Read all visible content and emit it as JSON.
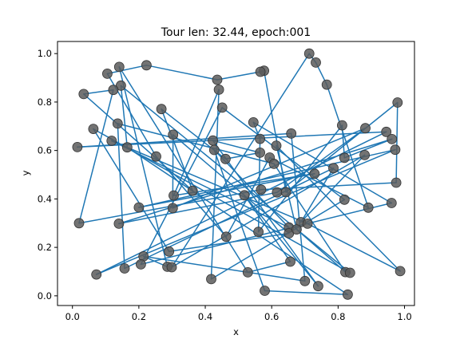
{
  "chart_data": {
    "type": "line",
    "title": "Tour len: 32.44, epoch:001",
    "xlabel": "x",
    "ylabel": "y",
    "xlim": [
      -0.045,
      1.03
    ],
    "ylim": [
      -0.04,
      1.05
    ],
    "xticks": [
      0.0,
      0.2,
      0.4,
      0.6,
      0.8,
      1.0
    ],
    "xtick_labels": [
      "0.0",
      "0.2",
      "0.4",
      "0.6",
      "0.8",
      "1.0"
    ],
    "yticks": [
      0.0,
      0.2,
      0.4,
      0.6,
      0.8,
      1.0
    ],
    "ytick_labels": [
      "0.0",
      "0.2",
      "0.4",
      "0.6",
      "0.8",
      "1.0"
    ],
    "grid": false,
    "line_color": "#1f77b4",
    "point_color": "#5a5a5a",
    "points": [
      [
        0.713,
        1.0
      ],
      [
        0.733,
        0.963
      ],
      [
        0.577,
        0.929
      ],
      [
        0.566,
        0.925
      ],
      [
        0.223,
        0.952
      ],
      [
        0.141,
        0.945
      ],
      [
        0.105,
        0.917
      ],
      [
        0.146,
        0.868
      ],
      [
        0.123,
        0.85
      ],
      [
        0.436,
        0.892
      ],
      [
        0.441,
        0.851
      ],
      [
        0.451,
        0.777
      ],
      [
        0.034,
        0.833
      ],
      [
        0.979,
        0.798
      ],
      [
        0.766,
        0.872
      ],
      [
        0.268,
        0.771
      ],
      [
        0.063,
        0.689
      ],
      [
        0.136,
        0.711
      ],
      [
        0.303,
        0.665
      ],
      [
        0.545,
        0.716
      ],
      [
        0.659,
        0.67
      ],
      [
        0.812,
        0.704
      ],
      [
        0.882,
        0.692
      ],
      [
        0.945,
        0.677
      ],
      [
        0.962,
        0.647
      ],
      [
        0.972,
        0.603
      ],
      [
        0.565,
        0.648
      ],
      [
        0.423,
        0.641
      ],
      [
        0.427,
        0.602
      ],
      [
        0.461,
        0.565
      ],
      [
        0.165,
        0.613
      ],
      [
        0.015,
        0.614
      ],
      [
        0.118,
        0.64
      ],
      [
        0.252,
        0.575
      ],
      [
        0.565,
        0.591
      ],
      [
        0.614,
        0.62
      ],
      [
        0.594,
        0.571
      ],
      [
        0.607,
        0.545
      ],
      [
        0.819,
        0.57
      ],
      [
        0.88,
        0.581
      ],
      [
        0.786,
        0.527
      ],
      [
        0.729,
        0.504
      ],
      [
        0.305,
        0.414
      ],
      [
        0.362,
        0.434
      ],
      [
        0.518,
        0.415
      ],
      [
        0.568,
        0.438
      ],
      [
        0.616,
        0.427
      ],
      [
        0.643,
        0.428
      ],
      [
        0.819,
        0.397
      ],
      [
        0.975,
        0.467
      ],
      [
        0.961,
        0.383
      ],
      [
        0.891,
        0.364
      ],
      [
        0.02,
        0.3
      ],
      [
        0.14,
        0.298
      ],
      [
        0.2,
        0.365
      ],
      [
        0.302,
        0.362
      ],
      [
        0.688,
        0.304
      ],
      [
        0.708,
        0.298
      ],
      [
        0.652,
        0.282
      ],
      [
        0.652,
        0.258
      ],
      [
        0.675,
        0.274
      ],
      [
        0.56,
        0.264
      ],
      [
        0.463,
        0.244
      ],
      [
        0.291,
        0.183
      ],
      [
        0.214,
        0.163
      ],
      [
        0.206,
        0.13
      ],
      [
        0.157,
        0.113
      ],
      [
        0.072,
        0.088
      ],
      [
        0.286,
        0.12
      ],
      [
        0.299,
        0.118
      ],
      [
        0.528,
        0.097
      ],
      [
        0.418,
        0.069
      ],
      [
        0.656,
        0.141
      ],
      [
        0.7,
        0.061
      ],
      [
        0.74,
        0.04
      ],
      [
        0.579,
        0.021
      ],
      [
        0.822,
        0.098
      ],
      [
        0.836,
        0.095
      ],
      [
        0.829,
        0.005
      ],
      [
        0.987,
        0.102
      ]
    ],
    "tour_order": [
      0,
      1,
      14,
      51,
      36,
      62,
      33,
      6,
      4,
      9,
      3,
      2,
      47,
      13,
      49,
      45,
      52,
      8,
      12,
      43,
      15,
      29,
      34,
      27,
      74,
      44,
      72,
      70,
      5,
      68,
      64,
      73,
      20,
      31,
      23,
      67,
      25,
      54,
      41,
      42,
      10,
      71,
      48,
      11,
      65,
      50,
      19,
      26,
      61,
      21,
      38,
      24,
      53,
      46,
      22,
      55,
      18,
      59,
      63,
      16,
      77,
      7,
      30,
      78,
      75,
      28,
      58,
      32,
      57,
      79,
      35,
      60,
      76,
      37,
      17,
      66,
      40,
      56,
      39,
      69
    ]
  }
}
